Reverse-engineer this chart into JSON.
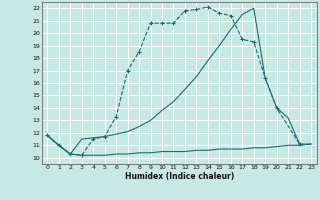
{
  "xlabel": "Humidex (Indice chaleur)",
  "bg_color": "#c8e8e4",
  "line_color": "#1a6b6b",
  "grid_color": "#ffffff",
  "xlim": [
    -0.5,
    23.5
  ],
  "ylim": [
    9.5,
    22.5
  ],
  "xticks": [
    0,
    1,
    2,
    3,
    4,
    5,
    6,
    7,
    8,
    9,
    10,
    11,
    12,
    13,
    14,
    15,
    16,
    17,
    18,
    19,
    20,
    21,
    22,
    23
  ],
  "yticks": [
    10,
    11,
    12,
    13,
    14,
    15,
    16,
    17,
    18,
    19,
    20,
    21,
    22
  ],
  "curve1_x": [
    0,
    1,
    2,
    3,
    4,
    5,
    6,
    7,
    8,
    9,
    10,
    11,
    12,
    13,
    14,
    15,
    16,
    17,
    18,
    19,
    20,
    22
  ],
  "curve1_y": [
    11.8,
    11.0,
    10.3,
    10.2,
    11.5,
    11.7,
    13.3,
    17.0,
    18.5,
    20.8,
    20.8,
    20.8,
    21.8,
    21.9,
    22.1,
    21.6,
    21.4,
    19.5,
    19.3,
    16.4,
    14.0,
    11.1
  ],
  "curve2_x": [
    0,
    1,
    2,
    3,
    4,
    5,
    6,
    7,
    8,
    9,
    10,
    11,
    12,
    13,
    14,
    15,
    16,
    17,
    18,
    19,
    20,
    21,
    22,
    23
  ],
  "curve2_y": [
    11.8,
    11.0,
    10.3,
    10.2,
    10.2,
    10.2,
    10.3,
    10.3,
    10.4,
    10.4,
    10.5,
    10.5,
    10.5,
    10.6,
    10.6,
    10.7,
    10.7,
    10.7,
    10.8,
    10.8,
    10.9,
    11.0,
    11.0,
    11.1
  ],
  "curve3_x": [
    0,
    1,
    2,
    3,
    4,
    5,
    6,
    7,
    8,
    9,
    10,
    11,
    12,
    13,
    14,
    15,
    16,
    17,
    18,
    19,
    20,
    21,
    22,
    23
  ],
  "curve3_y": [
    11.8,
    11.0,
    10.3,
    11.5,
    11.6,
    11.7,
    11.9,
    12.1,
    12.5,
    13.0,
    13.8,
    14.5,
    15.5,
    16.5,
    17.8,
    19.0,
    20.3,
    21.5,
    22.0,
    16.4,
    14.0,
    13.2,
    11.1,
    11.1
  ]
}
